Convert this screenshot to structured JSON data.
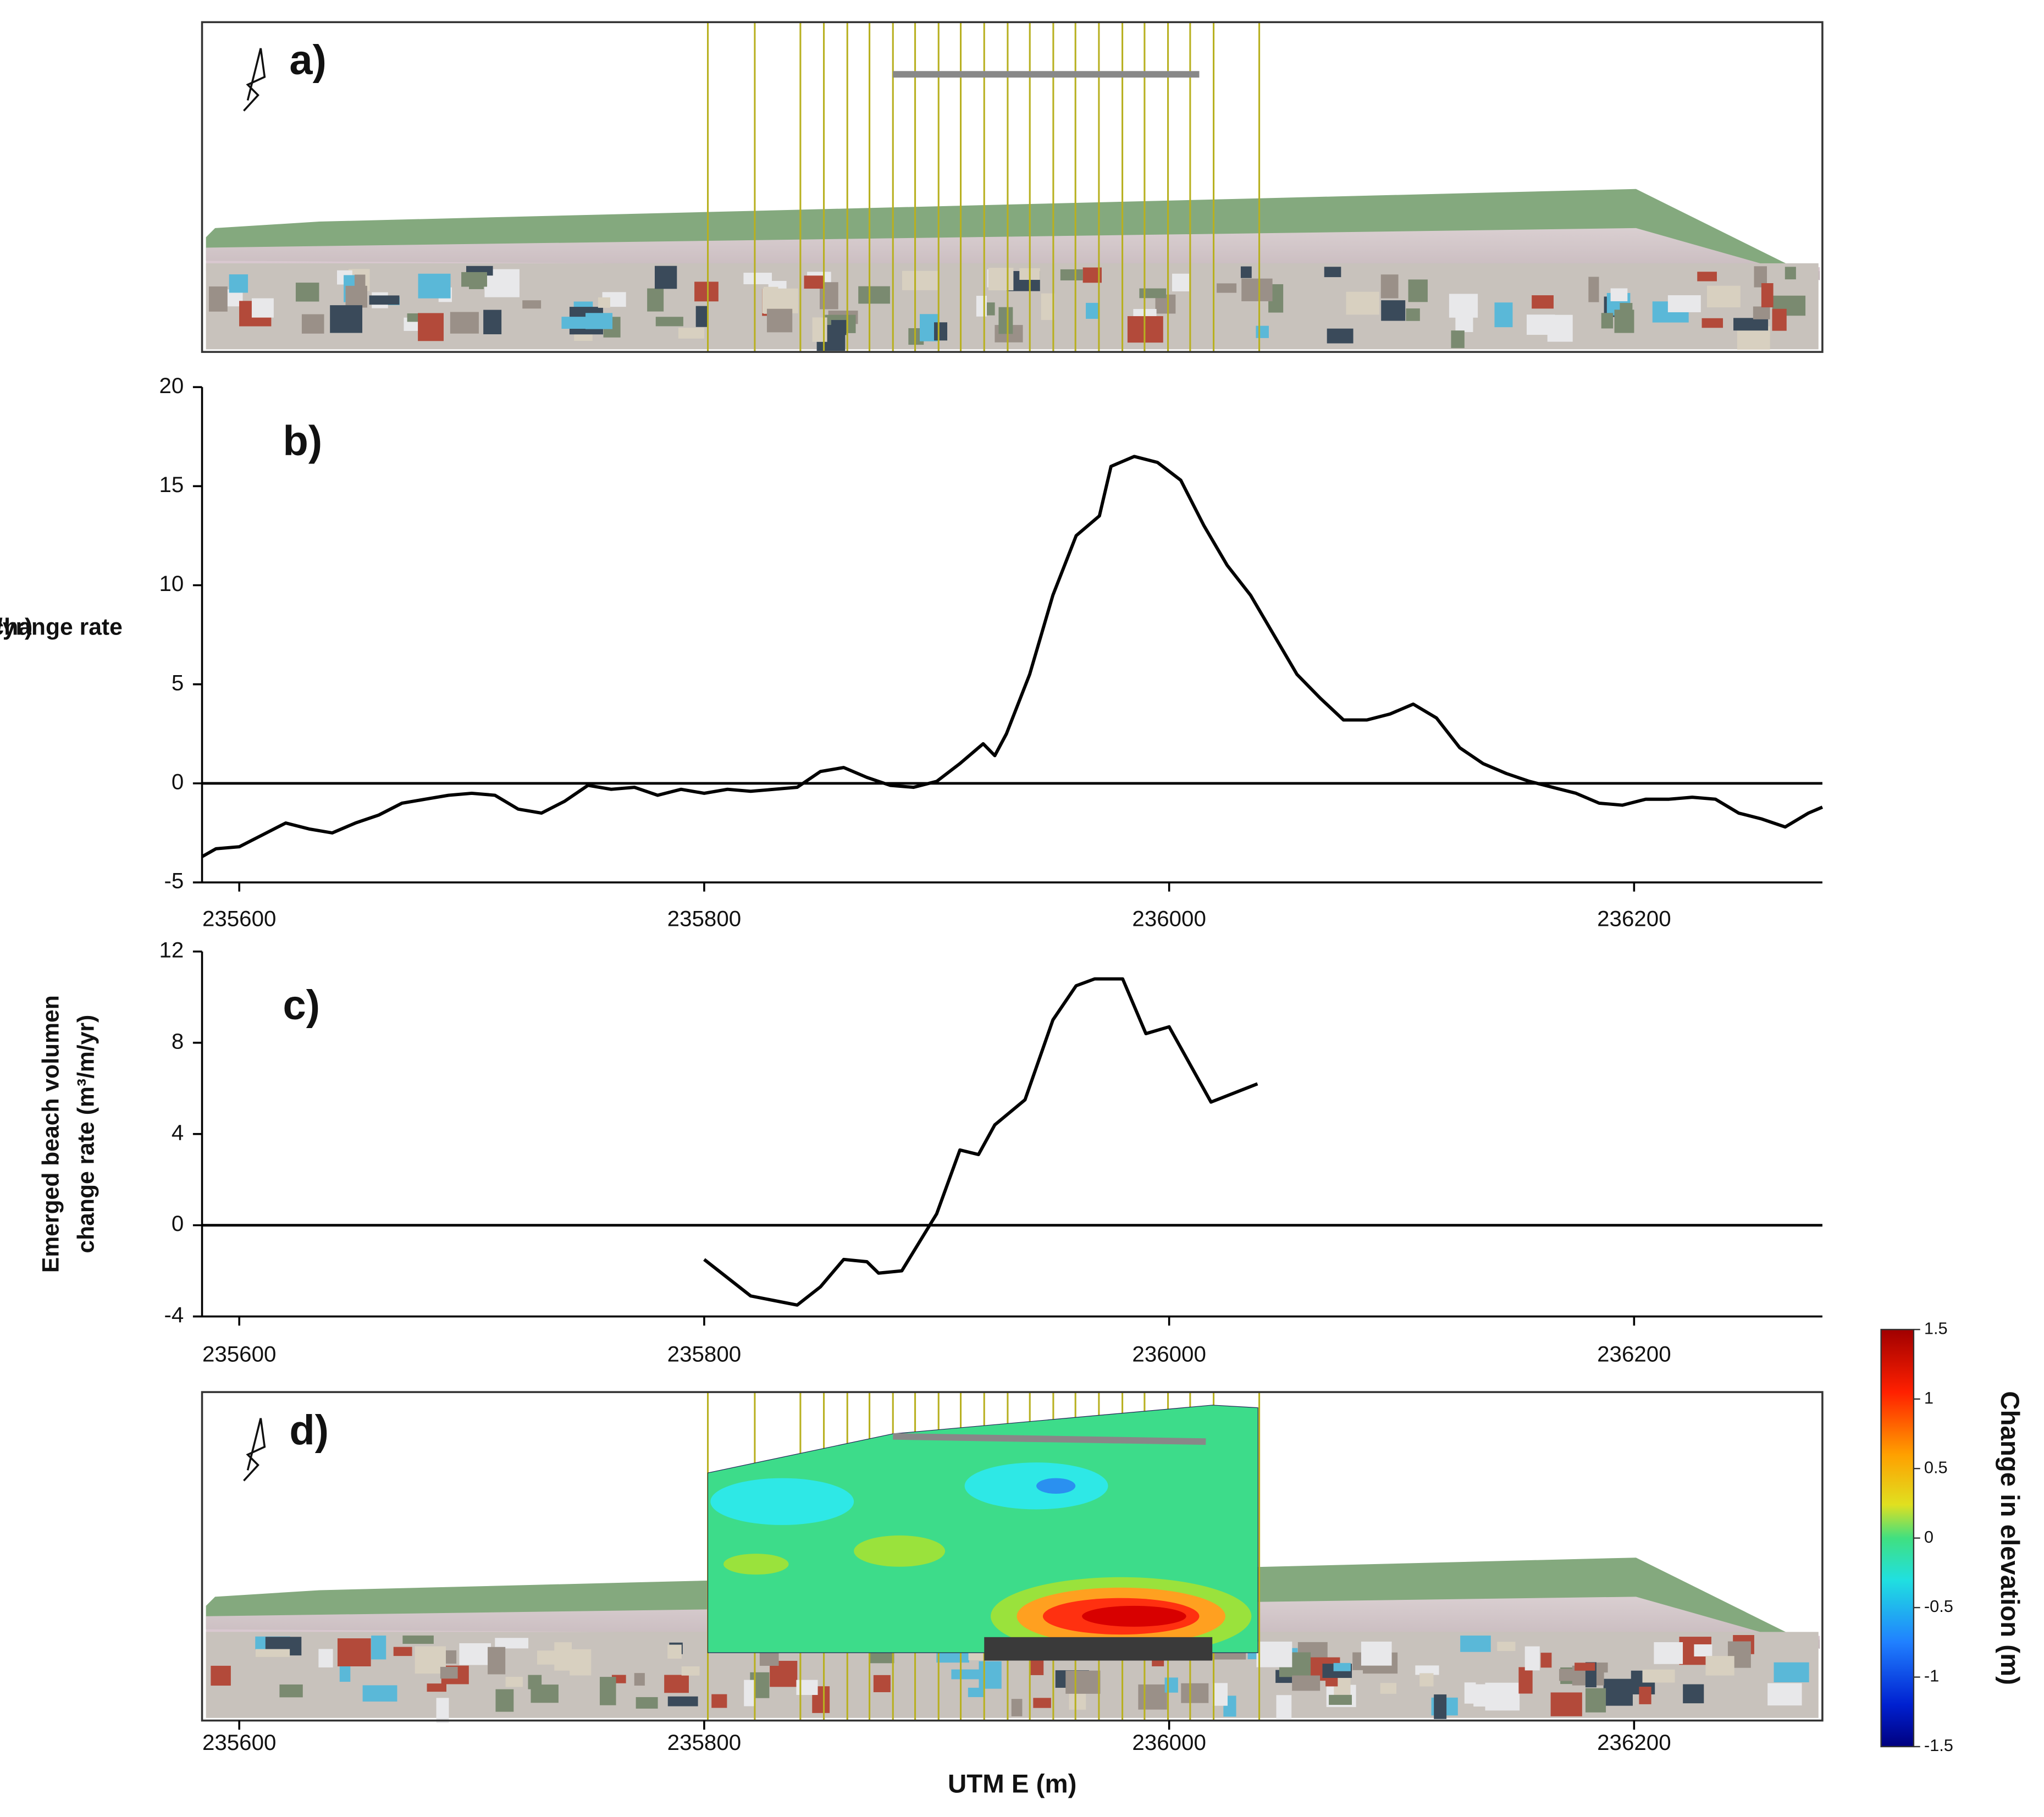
{
  "chart_data": [
    {
      "type": "image",
      "title": "a)"
    },
    {
      "type": "line",
      "title": "b)",
      "ylabel": [
        "Shoreline change rate",
        "(m/yr)"
      ],
      "xlim": [
        235584,
        236281
      ],
      "xticks": [
        235600,
        235800,
        236000,
        236200
      ],
      "ylim": [
        -5,
        20
      ],
      "yticks": [
        -5,
        0,
        5,
        10,
        15,
        20
      ],
      "series": [
        {
          "color": "#000000",
          "x": [
            235584,
            235590,
            235600,
            235610,
            235620,
            235630,
            235640,
            235650,
            235660,
            235670,
            235680,
            235690,
            235700,
            235710,
            235720,
            235730,
            235740,
            235750,
            235760,
            235770,
            235780,
            235790,
            235800,
            235810,
            235820,
            235830,
            235840,
            235850,
            235860,
            235870,
            235880,
            235890,
            235900,
            235910,
            235920,
            235925,
            235930,
            235940,
            235950,
            235960,
            235970,
            235975,
            235985,
            235995,
            236005,
            236015,
            236025,
            236035,
            236045,
            236055,
            236065,
            236075,
            236085,
            236095,
            236105,
            236115,
            236125,
            236135,
            236145,
            236155,
            236165,
            236175,
            236185,
            236195,
            236205,
            236215,
            236225,
            236235,
            236245,
            236255,
            236265,
            236275,
            236281
          ],
          "values": [
            -3.7,
            -3.3,
            -3.2,
            -2.6,
            -2.0,
            -2.3,
            -2.5,
            -2.0,
            -1.6,
            -1.0,
            -0.8,
            -0.6,
            -0.5,
            -0.6,
            -1.3,
            -1.5,
            -0.9,
            -0.1,
            -0.3,
            -0.2,
            -0.6,
            -0.3,
            -0.5,
            -0.3,
            -0.4,
            -0.3,
            -0.2,
            0.6,
            0.8,
            0.3,
            -0.1,
            -0.2,
            0.1,
            1.0,
            2.0,
            1.4,
            2.5,
            5.5,
            9.5,
            12.5,
            13.5,
            16.0,
            16.5,
            16.2,
            15.3,
            13.0,
            11.0,
            9.5,
            7.5,
            5.5,
            4.3,
            3.2,
            3.2,
            3.5,
            4.0,
            3.3,
            1.8,
            1.0,
            0.5,
            0.1,
            -0.2,
            -0.5,
            -1.0,
            -1.1,
            -0.8,
            -0.8,
            -0.7,
            -0.8,
            -1.5,
            -1.8,
            -2.2,
            -1.5,
            -1.2
          ]
        }
      ]
    },
    {
      "type": "line",
      "title": "c)",
      "ylabel": [
        "Emerged beach volumen",
        "change rate (m³/m/yr)"
      ],
      "xlim": [
        235584,
        236281
      ],
      "xticks": [
        235600,
        235800,
        236000,
        236200
      ],
      "ylim": [
        -4,
        12
      ],
      "yticks": [
        -4,
        0,
        4,
        8,
        12
      ],
      "series": [
        {
          "color": "#000000",
          "x": [
            235800,
            235820,
            235840,
            235850,
            235860,
            235870,
            235875,
            235885,
            235900,
            235910,
            235918,
            235925,
            235938,
            235950,
            235960,
            235968,
            235980,
            235990,
            236000,
            236018,
            236038
          ],
          "values": [
            -1.5,
            -3.1,
            -3.5,
            -2.7,
            -1.5,
            -1.6,
            -2.1,
            -2.0,
            0.5,
            3.3,
            3.1,
            4.4,
            5.5,
            9.0,
            10.5,
            10.8,
            10.8,
            8.4,
            8.7,
            5.4,
            6.2
          ]
        }
      ]
    },
    {
      "type": "image",
      "title": "d)",
      "xlim": [
        235584,
        236281
      ],
      "xticks": [
        235600,
        235800,
        236000,
        236200
      ],
      "xlabel": "UTM E (m)",
      "colorbar_label": "Change in elevation (m)",
      "clim": [
        -1.5,
        1.5
      ],
      "cticks": [
        1.5,
        1,
        0.5,
        0,
        -0.5,
        -1,
        -1.5
      ]
    }
  ]
}
